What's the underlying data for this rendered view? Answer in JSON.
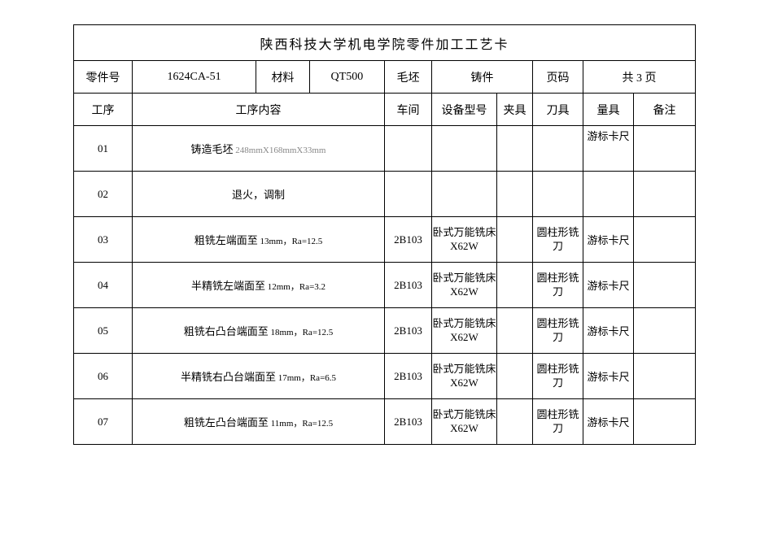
{
  "table": {
    "type": "table",
    "border_color": "#000000",
    "background_color": "#ffffff",
    "text_color": "#000000",
    "dim_text_color": "#888888",
    "font_family": "SimSun",
    "title_fontsize": 16,
    "header_fontsize": 14,
    "body_fontsize": 13,
    "small_fontsize": 11,
    "title": "陕西科技大学机电学院零件加工工艺卡",
    "info": {
      "part_no_label": "零件号",
      "part_no": "1624CA-51",
      "material_label": "材料",
      "material": "QT500",
      "blank_label": "毛坯",
      "blank": "铸件",
      "page_label": "页码",
      "page": "共 3 页"
    },
    "columns": {
      "step": "工序",
      "content": "工序内容",
      "workshop": "车间",
      "equipment": "设备型号",
      "fixture": "夹具",
      "tool": "刀具",
      "gauge": "量具",
      "remark": "备注"
    },
    "column_widths": {
      "step": 72,
      "content": 264,
      "workshop": 58,
      "equipment": 80,
      "fixture": 44,
      "tool": 62,
      "gauge": 62,
      "remark": 76
    },
    "row_heights": {
      "title": 44,
      "info": 40,
      "header": 40,
      "data": 56
    },
    "rows": [
      {
        "step": "01",
        "content_prefix": "铸造毛坯",
        "content_dim": "248mmX168mmX33mm",
        "workshop": "",
        "equipment": "",
        "fixture": "",
        "tool": "",
        "gauge": "游标卡尺",
        "gauge_top": true,
        "remark": ""
      },
      {
        "step": "02",
        "content": "退火，调制",
        "workshop": "",
        "equipment": "",
        "fixture": "",
        "tool": "",
        "gauge": "",
        "remark": ""
      },
      {
        "step": "03",
        "content_prefix": "粗铣左端面至",
        "content_small": "13mm，Ra=12.5",
        "workshop": "2B103",
        "equipment": "卧式万能铣床 X62W",
        "fixture": "",
        "tool": "圆柱形铣刀",
        "gauge": "游标卡尺",
        "remark": ""
      },
      {
        "step": "04",
        "content_prefix": "半精铣左端面至",
        "content_small": "12mm，Ra=3.2",
        "workshop": "2B103",
        "equipment": "卧式万能铣床 X62W",
        "fixture": "",
        "tool": "圆柱形铣刀",
        "gauge": "游标卡尺",
        "remark": ""
      },
      {
        "step": "05",
        "content_prefix": "粗铣右凸台端面至",
        "content_small": "18mm，Ra=12.5",
        "workshop": "2B103",
        "equipment": "卧式万能铣床 X62W",
        "fixture": "",
        "tool": "圆柱形铣刀",
        "gauge": "游标卡尺",
        "remark": ""
      },
      {
        "step": "06",
        "content_prefix": "半精铣右凸台端面至",
        "content_small": "17mm，Ra=6.5",
        "workshop": "2B103",
        "equipment": "卧式万能铣床 X62W",
        "fixture": "",
        "tool": "圆柱形铣刀",
        "gauge": "游标卡尺",
        "remark": ""
      },
      {
        "step": "07",
        "content_prefix": "粗铣左凸台端面至",
        "content_small": "11mm，Ra=12.5",
        "workshop": "2B103",
        "equipment": "卧式万能铣床 X62W",
        "fixture": "",
        "tool": "圆柱形铣刀",
        "gauge": "游标卡尺",
        "remark": ""
      }
    ]
  }
}
